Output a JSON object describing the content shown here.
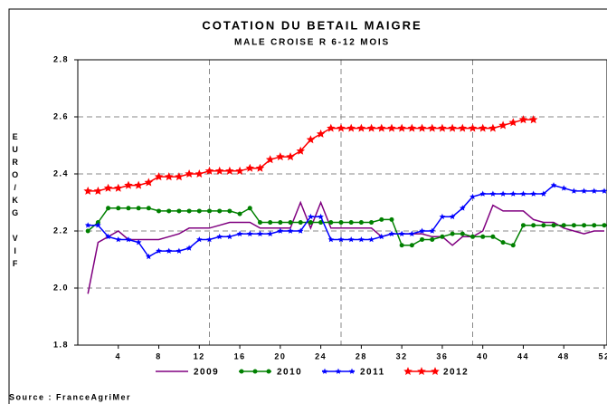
{
  "chart_data": {
    "type": "line",
    "title": "COTATION DU BETAIL MAIGRE",
    "subtitle": "MALE CROISE R 6-12 MOIS",
    "ylabel": "EURO/KG VIF",
    "source": "Source : FranceAgriMer",
    "x": [
      1,
      2,
      3,
      4,
      5,
      6,
      7,
      8,
      9,
      10,
      11,
      12,
      13,
      14,
      15,
      16,
      17,
      18,
      19,
      20,
      21,
      22,
      23,
      24,
      25,
      26,
      27,
      28,
      29,
      30,
      31,
      32,
      33,
      34,
      35,
      36,
      37,
      38,
      39,
      40,
      41,
      42,
      43,
      44,
      45,
      46,
      47,
      48,
      49,
      50,
      51,
      52
    ],
    "xlim": [
      0,
      52
    ],
    "xticks": [
      4,
      8,
      12,
      16,
      20,
      24,
      28,
      32,
      36,
      40,
      44,
      48,
      52
    ],
    "xgrid": [
      13,
      26,
      39
    ],
    "ylim": [
      1.8,
      2.8
    ],
    "yticks": [
      {
        "value": 1.8,
        "label": "1.8"
      },
      {
        "value": 2,
        "label": "2.0"
      },
      2.2,
      2.4,
      2.6,
      2.8
    ],
    "ygrid": [
      2,
      2.2,
      2.4,
      2.6
    ],
    "legend": "bottom",
    "series": [
      {
        "name": "2009",
        "color": "#800080",
        "marker": "none",
        "values": [
          1.98,
          2.16,
          2.18,
          2.2,
          2.17,
          2.17,
          2.17,
          2.17,
          2.18,
          2.19,
          2.21,
          2.21,
          2.21,
          2.22,
          2.23,
          2.23,
          2.23,
          2.21,
          2.21,
          2.21,
          2.21,
          2.3,
          2.21,
          2.3,
          2.21,
          2.21,
          2.21,
          2.21,
          2.21,
          2.18,
          2.19,
          2.19,
          2.19,
          2.19,
          2.18,
          2.18,
          2.15,
          2.18,
          2.18,
          2.2,
          2.29,
          2.27,
          2.27,
          2.27,
          2.24,
          2.23,
          2.23,
          2.21,
          2.2,
          2.19,
          2.2,
          2.2
        ]
      },
      {
        "name": "2010",
        "color": "#008000",
        "marker": "circle",
        "values": [
          2.2,
          2.23,
          2.28,
          2.28,
          2.28,
          2.28,
          2.28,
          2.27,
          2.27,
          2.27,
          2.27,
          2.27,
          2.27,
          2.27,
          2.27,
          2.26,
          2.28,
          2.23,
          2.23,
          2.23,
          2.23,
          2.23,
          2.23,
          2.23,
          2.23,
          2.23,
          2.23,
          2.23,
          2.23,
          2.24,
          2.24,
          2.15,
          2.15,
          2.17,
          2.17,
          2.18,
          2.19,
          2.19,
          2.18,
          2.18,
          2.18,
          2.16,
          2.15,
          2.22,
          2.22,
          2.22,
          2.22,
          2.22,
          2.22,
          2.22,
          2.22,
          2.22
        ]
      },
      {
        "name": "2011",
        "color": "#0000ff",
        "marker": "star",
        "values": [
          2.22,
          2.22,
          2.18,
          2.17,
          2.17,
          2.16,
          2.11,
          2.13,
          2.13,
          2.13,
          2.14,
          2.17,
          2.17,
          2.18,
          2.18,
          2.19,
          2.19,
          2.19,
          2.19,
          2.2,
          2.2,
          2.2,
          2.25,
          2.25,
          2.17,
          2.17,
          2.17,
          2.17,
          2.17,
          2.18,
          2.19,
          2.19,
          2.19,
          2.2,
          2.2,
          2.25,
          2.25,
          2.28,
          2.32,
          2.33,
          2.33,
          2.33,
          2.33,
          2.33,
          2.33,
          2.33,
          2.36,
          2.35,
          2.34,
          2.34,
          2.34,
          2.34
        ]
      },
      {
        "name": "2012",
        "color": "#ff0000",
        "marker": "bigstar",
        "values": [
          2.34,
          2.34,
          2.35,
          2.35,
          2.36,
          2.36,
          2.37,
          2.39,
          2.39,
          2.39,
          2.4,
          2.4,
          2.41,
          2.41,
          2.41,
          2.41,
          2.42,
          2.42,
          2.45,
          2.46,
          2.46,
          2.48,
          2.52,
          2.54,
          2.56,
          2.56,
          2.56,
          2.56,
          2.56,
          2.56,
          2.56,
          2.56,
          2.56,
          2.56,
          2.56,
          2.56,
          2.56,
          2.56,
          2.56,
          2.56,
          2.56,
          2.57,
          2.58,
          2.59,
          2.59,
          null,
          null,
          null,
          null,
          null,
          null,
          null
        ]
      }
    ]
  }
}
